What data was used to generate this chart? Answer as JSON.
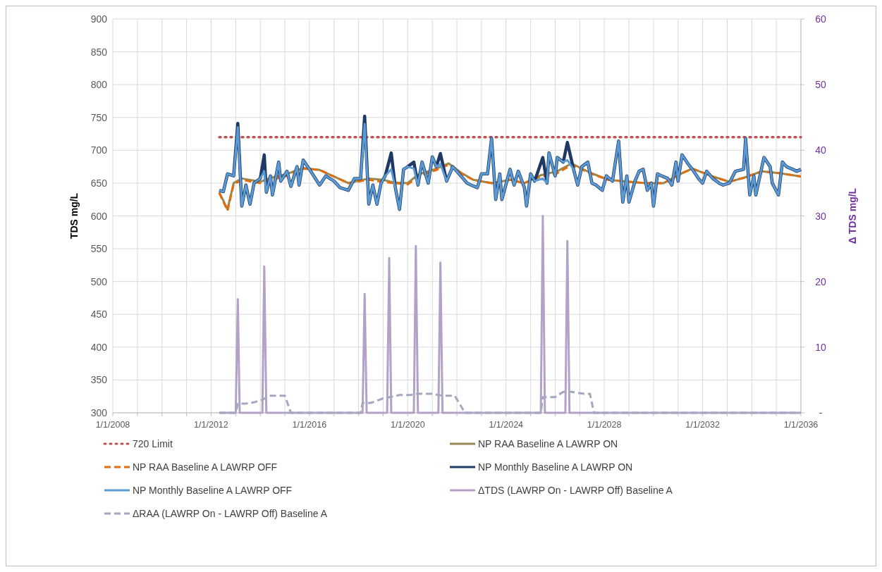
{
  "chart_data": {
    "type": "line",
    "ylabel": "TDS  mg/L",
    "y2label": "Δ TDS mg/L",
    "xlim": [
      "2008-01-01",
      "2036-01-01"
    ],
    "ylim": [
      300,
      900
    ],
    "y2lim": [
      0,
      60
    ],
    "xticks": [
      {
        "value": "2008-01-01",
        "label": "1/1/2008"
      },
      {
        "value": "2009-01-01",
        "label": null
      },
      {
        "value": "2010-01-01",
        "label": null
      },
      {
        "value": "2011-01-01",
        "label": null
      },
      {
        "value": "2012-01-01",
        "label": "1/1/2012"
      },
      {
        "value": "2013-01-01",
        "label": null
      },
      {
        "value": "2014-01-01",
        "label": null
      },
      {
        "value": "2015-01-01",
        "label": null
      },
      {
        "value": "2016-01-01",
        "label": "1/1/2016"
      },
      {
        "value": "2017-01-01",
        "label": null
      },
      {
        "value": "2018-01-01",
        "label": null
      },
      {
        "value": "2019-01-01",
        "label": null
      },
      {
        "value": "2020-01-01",
        "label": "1/1/2020"
      },
      {
        "value": "2021-01-01",
        "label": null
      },
      {
        "value": "2022-01-01",
        "label": null
      },
      {
        "value": "2023-01-01",
        "label": null
      },
      {
        "value": "2024-01-01",
        "label": "1/1/2024"
      },
      {
        "value": "2025-01-01",
        "label": null
      },
      {
        "value": "2026-01-01",
        "label": null
      },
      {
        "value": "2027-01-01",
        "label": null
      },
      {
        "value": "2028-01-01",
        "label": "1/1/2028"
      },
      {
        "value": "2029-01-01",
        "label": null
      },
      {
        "value": "2030-01-01",
        "label": null
      },
      {
        "value": "2031-01-01",
        "label": null
      },
      {
        "value": "2032-01-01",
        "label": "1/1/2032"
      },
      {
        "value": "2033-01-01",
        "label": null
      },
      {
        "value": "2034-01-01",
        "label": null
      },
      {
        "value": "2035-01-01",
        "label": null
      },
      {
        "value": "2036-01-01",
        "label": "1/1/2036"
      }
    ],
    "yticks": [
      300,
      350,
      400,
      450,
      500,
      550,
      600,
      650,
      700,
      750,
      800,
      850,
      900
    ],
    "y2ticks": [
      {
        "value": 0,
        "label": "-"
      },
      10,
      20,
      30,
      40,
      50,
      60
    ],
    "grid": true,
    "legend": "bottom",
    "series": [
      {
        "name": "720 Limit",
        "color": "#c0504d",
        "line_style": "dotted",
        "x": [
          "2012-05",
          "2036-01"
        ],
        "values": [
          720,
          720
        ]
      },
      {
        "name": "NP RAA Baseline A LAWRP ON",
        "color": "#948a54",
        "line_style": "solid",
        "x": [
          "2012-05",
          "2012-09",
          "2012-12",
          "2013-04",
          "2014-01",
          "2014-06",
          "2015-01",
          "2015-10",
          "2016-06",
          "2017-01",
          "2017-08",
          "2018-06",
          "2019-01",
          "2019-06",
          "2020-01",
          "2020-06",
          "2021-03",
          "2021-09",
          "2022-03",
          "2022-09",
          "2023-06",
          "2024-03",
          "2024-10",
          "2025-06",
          "2026-02",
          "2026-09",
          "2027-06",
          "2028-03",
          "2029-01",
          "2029-09",
          "2030-06",
          "2031-03",
          "2031-08",
          "2032-06",
          "2033-02",
          "2033-09",
          "2034-06",
          "2035-03",
          "2036-01"
        ],
        "values": [
          636,
          610,
          650,
          657,
          652,
          658,
          663,
          673,
          670,
          660,
          650,
          657,
          655,
          651,
          650,
          663,
          672,
          680,
          666,
          655,
          650,
          655,
          650,
          662,
          668,
          680,
          666,
          655,
          652,
          650,
          650,
          665,
          672,
          660,
          652,
          658,
          668,
          665,
          660
        ]
      },
      {
        "name": "NP RAA Baseline A LAWRP OFF",
        "color": "#e46c0a",
        "line_style": "dashed",
        "x": [
          "2012-05",
          "2012-09",
          "2012-12",
          "2013-04",
          "2014-01",
          "2014-06",
          "2015-01",
          "2015-10",
          "2016-06",
          "2017-01",
          "2017-08",
          "2018-06",
          "2019-01",
          "2019-06",
          "2020-01",
          "2020-06",
          "2021-03",
          "2021-09",
          "2022-03",
          "2022-09",
          "2023-06",
          "2024-03",
          "2024-10",
          "2025-06",
          "2026-02",
          "2026-09",
          "2027-06",
          "2028-03",
          "2029-01",
          "2029-09",
          "2030-06",
          "2031-03",
          "2031-08",
          "2032-06",
          "2033-02",
          "2033-09",
          "2034-06",
          "2035-03",
          "2036-01"
        ],
        "values": [
          635,
          608,
          648,
          655,
          650,
          655,
          660,
          672,
          670,
          660,
          650,
          655,
          652,
          650,
          648,
          660,
          670,
          678,
          665,
          655,
          650,
          655,
          650,
          660,
          665,
          678,
          665,
          655,
          652,
          650,
          650,
          665,
          672,
          660,
          652,
          658,
          668,
          665,
          660
        ]
      },
      {
        "name": "NP Monthly Baseline A LAWRP ON",
        "color": "#1f3864",
        "line_style": "solid",
        "x": [
          "2012-05",
          "2012-07",
          "2012-09",
          "2012-12",
          "2013-02",
          "2013-04",
          "2013-06",
          "2013-08",
          "2013-10",
          "2014-01",
          "2014-03",
          "2014-04",
          "2014-06",
          "2014-07",
          "2014-10",
          "2014-11",
          "2015-02",
          "2015-04",
          "2015-07",
          "2015-08",
          "2015-10",
          "2016-01",
          "2016-06",
          "2016-09",
          "2017-01",
          "2017-04",
          "2017-08",
          "2017-11",
          "2018-02",
          "2018-04",
          "2018-06",
          "2018-08",
          "2018-10",
          "2018-12",
          "2019-02",
          "2019-05",
          "2019-07",
          "2019-09",
          "2019-11",
          "2020-01",
          "2020-04",
          "2020-06",
          "2020-08",
          "2020-11",
          "2021-01",
          "2021-03",
          "2021-05",
          "2021-08",
          "2021-11",
          "2022-03",
          "2022-06",
          "2022-08",
          "2022-11",
          "2023-01",
          "2023-04",
          "2023-06",
          "2023-08",
          "2023-10",
          "2023-11",
          "2024-03",
          "2024-05",
          "2024-07",
          "2024-10",
          "2024-11",
          "2025-01",
          "2025-03",
          "2025-07",
          "2025-09",
          "2025-10",
          "2026-01",
          "2026-02",
          "2026-05",
          "2026-07",
          "2026-10",
          "2026-12",
          "2027-02",
          "2027-05",
          "2027-07",
          "2027-09",
          "2027-12",
          "2028-02",
          "2028-05",
          "2028-08",
          "2028-10",
          "2028-12",
          "2029-01",
          "2029-04",
          "2029-06",
          "2029-08",
          "2029-10",
          "2029-12",
          "2030-01",
          "2030-03",
          "2030-05",
          "2030-08",
          "2030-10",
          "2030-12",
          "2031-01",
          "2031-03",
          "2031-06",
          "2031-08",
          "2031-11",
          "2032-01",
          "2032-03",
          "2032-06",
          "2032-09",
          "2032-11",
          "2033-02",
          "2033-05",
          "2033-09",
          "2033-10",
          "2033-12",
          "2034-02",
          "2034-03",
          "2034-07",
          "2034-10",
          "2034-11",
          "2035-02",
          "2035-04",
          "2035-06",
          "2035-09",
          "2035-11",
          "2036-01"
        ],
        "values": [
          639,
          637,
          664,
          661,
          741,
          615,
          647,
          618,
          650,
          657,
          693,
          636,
          661,
          632,
          682,
          653,
          668,
          645,
          675,
          647,
          685,
          671,
          647,
          661,
          653,
          643,
          639,
          657,
          657,
          752,
          618,
          647,
          618,
          650,
          661,
          696,
          643,
          610,
          671,
          675,
          682,
          647,
          682,
          650,
          690,
          675,
          695,
          653,
          675,
          661,
          650,
          647,
          643,
          664,
          664,
          718,
          625,
          664,
          625,
          671,
          647,
          668,
          643,
          615,
          664,
          653,
          689,
          650,
          696,
          661,
          689,
          682,
          712,
          671,
          647,
          675,
          682,
          650,
          647,
          639,
          661,
          653,
          714,
          621,
          661,
          621,
          653,
          668,
          671,
          639,
          650,
          615,
          664,
          661,
          657,
          647,
          682,
          653,
          693,
          679,
          671,
          657,
          650,
          668,
          657,
          650,
          647,
          650,
          668,
          671,
          718,
          632,
          661,
          632,
          689,
          675,
          650,
          632,
          682,
          675,
          671,
          668,
          671
        ]
      },
      {
        "name": "NP Monthly Baseline A LAWRP OFF",
        "color": "#5b9bd5",
        "line_style": "solid",
        "x": [
          "2012-05",
          "2012-07",
          "2012-09",
          "2012-12",
          "2013-02",
          "2013-04",
          "2013-06",
          "2013-08",
          "2013-10",
          "2014-01",
          "2014-03",
          "2014-04",
          "2014-06",
          "2014-07",
          "2014-10",
          "2014-11",
          "2015-02",
          "2015-04",
          "2015-07",
          "2015-08",
          "2015-10",
          "2016-01",
          "2016-06",
          "2016-09",
          "2017-01",
          "2017-04",
          "2017-08",
          "2017-11",
          "2018-02",
          "2018-04",
          "2018-06",
          "2018-08",
          "2018-10",
          "2018-12",
          "2019-02",
          "2019-05",
          "2019-07",
          "2019-09",
          "2019-11",
          "2020-01",
          "2020-04",
          "2020-06",
          "2020-08",
          "2020-11",
          "2021-01",
          "2021-03",
          "2021-05",
          "2021-08",
          "2021-11",
          "2022-03",
          "2022-06",
          "2022-08",
          "2022-11",
          "2023-01",
          "2023-04",
          "2023-06",
          "2023-08",
          "2023-10",
          "2023-11",
          "2024-03",
          "2024-05",
          "2024-07",
          "2024-10",
          "2024-11",
          "2025-01",
          "2025-03",
          "2025-07",
          "2025-09",
          "2025-10",
          "2026-01",
          "2026-02",
          "2026-05",
          "2026-07",
          "2026-10",
          "2026-12",
          "2027-02",
          "2027-05",
          "2027-07",
          "2027-09",
          "2027-12",
          "2028-02",
          "2028-05",
          "2028-08",
          "2028-10",
          "2028-12",
          "2029-01",
          "2029-04",
          "2029-06",
          "2029-08",
          "2029-10",
          "2029-12",
          "2030-01",
          "2030-03",
          "2030-05",
          "2030-08",
          "2030-10",
          "2030-12",
          "2031-01",
          "2031-03",
          "2031-06",
          "2031-08",
          "2031-11",
          "2032-01",
          "2032-03",
          "2032-06",
          "2032-09",
          "2032-11",
          "2033-02",
          "2033-05",
          "2033-09",
          "2033-10",
          "2033-12",
          "2034-02",
          "2034-03",
          "2034-07",
          "2034-10",
          "2034-11",
          "2035-02",
          "2035-04",
          "2035-06",
          "2035-09",
          "2035-11",
          "2036-01"
        ],
        "values": [
          639,
          637,
          664,
          661,
          735,
          615,
          647,
          618,
          650,
          657,
          668,
          636,
          661,
          632,
          682,
          653,
          668,
          645,
          675,
          647,
          685,
          671,
          647,
          661,
          653,
          643,
          639,
          657,
          657,
          740,
          618,
          647,
          618,
          650,
          661,
          671,
          643,
          610,
          671,
          675,
          672,
          647,
          682,
          650,
          690,
          675,
          679,
          653,
          675,
          661,
          650,
          647,
          643,
          664,
          664,
          718,
          625,
          664,
          625,
          671,
          647,
          668,
          643,
          615,
          664,
          653,
          657,
          650,
          696,
          661,
          689,
          682,
          685,
          671,
          647,
          675,
          682,
          650,
          647,
          639,
          661,
          653,
          714,
          621,
          661,
          621,
          653,
          668,
          671,
          639,
          650,
          615,
          664,
          661,
          657,
          647,
          682,
          653,
          693,
          679,
          671,
          657,
          650,
          668,
          657,
          650,
          647,
          650,
          668,
          671,
          718,
          632,
          661,
          632,
          689,
          675,
          650,
          632,
          682,
          675,
          671,
          668,
          671
        ]
      },
      {
        "name": "ΔTDS (LAWRP On - LAWRP Off) Baseline A",
        "color": "#b3a2c7",
        "line_style": "solid",
        "axis": "y2",
        "x": [
          "2012-05",
          "2013-01",
          "2013-02",
          "2013-03",
          "2014-02",
          "2014-03",
          "2014-04",
          "2018-03",
          "2018-04",
          "2018-05",
          "2019-03",
          "2019-04",
          "2019-05",
          "2020-04",
          "2020-05",
          "2020-06",
          "2021-04",
          "2021-05",
          "2021-06",
          "2025-06",
          "2025-07",
          "2025-08",
          "2026-06",
          "2026-07",
          "2026-08",
          "2036-01"
        ],
        "values": [
          0,
          0,
          17.3,
          0,
          0,
          22.3,
          0,
          0,
          18.1,
          0,
          0,
          23.6,
          0,
          0,
          25.4,
          0,
          0,
          22.9,
          0,
          0,
          30,
          0,
          0,
          26.2,
          0,
          0
        ]
      },
      {
        "name": "ΔRAA (LAWRP On - LAWRP Off) Baseline A",
        "color": "#a6a6bf",
        "line_style": "dashed",
        "axis": "y2",
        "x": [
          "2012-05",
          "2013-01",
          "2013-02",
          "2013-06",
          "2013-10",
          "2014-02",
          "2014-06",
          "2015-01",
          "2015-04",
          "2018-02",
          "2018-03",
          "2018-07",
          "2019-01",
          "2019-09",
          "2020-02",
          "2020-06",
          "2021-01",
          "2021-06",
          "2021-12",
          "2022-05",
          "2025-06",
          "2025-07",
          "2026-01",
          "2026-05",
          "2026-09",
          "2027-03",
          "2027-06",
          "2027-08",
          "2036-01"
        ],
        "values": [
          0,
          0,
          1.4,
          1.4,
          1.6,
          2,
          2.6,
          2.6,
          0,
          0,
          1.5,
          1.5,
          2.2,
          2.7,
          2.7,
          2.9,
          2.9,
          2.6,
          2.6,
          0,
          0,
          2.4,
          2.4,
          3.2,
          3.2,
          2.9,
          2.9,
          0,
          0
        ]
      }
    ]
  }
}
